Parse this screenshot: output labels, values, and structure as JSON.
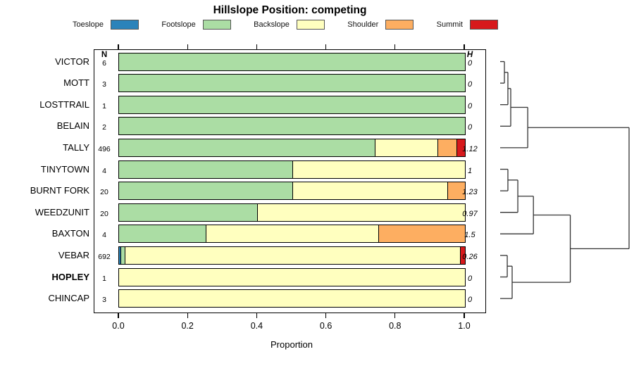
{
  "title": "Hillslope Position: competing",
  "legend": {
    "items": [
      {
        "label": "Toeslope",
        "color": "#2B83BA"
      },
      {
        "label": "Footslope",
        "color": "#ABDDA4"
      },
      {
        "label": "Backslope",
        "color": "#FFFFBF"
      },
      {
        "label": "Shoulder",
        "color": "#FDAE61"
      },
      {
        "label": "Summit",
        "color": "#D7191C"
      }
    ]
  },
  "chart_data": {
    "type": "bar",
    "orientation": "horizontal-stacked",
    "title": "Hillslope Position: competing",
    "xlabel": "Proportion",
    "xlim": [
      0,
      1.04
    ],
    "x_ticks": [
      0.0,
      0.2,
      0.4,
      0.6,
      0.8,
      1.0
    ],
    "x_tick_labels": [
      "0.0",
      "0.2",
      "0.4",
      "0.6",
      "0.8",
      "1.0"
    ],
    "grid": false,
    "legend_position": "top",
    "n_header": "N",
    "h_header": "H",
    "categories": [
      "Toeslope",
      "Footslope",
      "Backslope",
      "Shoulder",
      "Summit"
    ],
    "category_colors": [
      "#2B83BA",
      "#ABDDA4",
      "#FFFFBF",
      "#FDAE61",
      "#D7191C"
    ],
    "rows": [
      {
        "label": "VICTOR",
        "n": "6",
        "h": "0",
        "bold": false,
        "proportions": [
          0,
          1,
          0,
          0,
          0
        ]
      },
      {
        "label": "MOTT",
        "n": "3",
        "h": "0",
        "bold": false,
        "proportions": [
          0,
          1,
          0,
          0,
          0
        ]
      },
      {
        "label": "LOSTTRAIL",
        "n": "1",
        "h": "0",
        "bold": false,
        "proportions": [
          0,
          1,
          0,
          0,
          0
        ]
      },
      {
        "label": "BELAIN",
        "n": "2",
        "h": "0",
        "bold": false,
        "proportions": [
          0,
          1,
          0,
          0,
          0
        ]
      },
      {
        "label": "TALLY",
        "n": "496",
        "h": "1.12",
        "bold": false,
        "proportions": [
          0,
          0.74,
          0.18,
          0.055,
          0.025
        ]
      },
      {
        "label": "TINYTOWN",
        "n": "4",
        "h": "1",
        "bold": false,
        "proportions": [
          0,
          0.5,
          0.5,
          0,
          0
        ]
      },
      {
        "label": "BURNT FORK",
        "n": "20",
        "h": "1.23",
        "bold": false,
        "proportions": [
          0,
          0.5,
          0.45,
          0.05,
          0
        ]
      },
      {
        "label": "WEEDZUNIT",
        "n": "20",
        "h": "0.97",
        "bold": false,
        "proportions": [
          0,
          0.4,
          0.6,
          0,
          0
        ]
      },
      {
        "label": "BAXTON",
        "n": "4",
        "h": "1.5",
        "bold": false,
        "proportions": [
          0,
          0.25,
          0.5,
          0.25,
          0
        ]
      },
      {
        "label": "VEBAR",
        "n": "692",
        "h": "0.26",
        "bold": false,
        "proportions": [
          0.004,
          0.013,
          0.968,
          0,
          0.015
        ]
      },
      {
        "label": "HOPLEY",
        "n": "1",
        "h": "0",
        "bold": true,
        "proportions": [
          0,
          0,
          1,
          0,
          0
        ]
      },
      {
        "label": "CHINCAP",
        "n": "3",
        "h": "0",
        "bold": false,
        "proportions": [
          0,
          0,
          1,
          0,
          0
        ]
      }
    ],
    "dendrogram": {
      "note": "merges reference leaf ids 0-11 (row order) or internal node ids 12+i; h is relative merge height 0-1",
      "merges": [
        {
          "a": 0,
          "b": 1,
          "h": 0.033
        },
        {
          "a": 12,
          "b": 2,
          "h": 0.06
        },
        {
          "a": 13,
          "b": 3,
          "h": 0.082
        },
        {
          "a": 14,
          "b": 4,
          "h": 0.214
        },
        {
          "a": 5,
          "b": 6,
          "h": 0.06
        },
        {
          "a": 16,
          "b": 7,
          "h": 0.137
        },
        {
          "a": 17,
          "b": 8,
          "h": 0.258
        },
        {
          "a": 9,
          "b": 10,
          "h": 0.055
        },
        {
          "a": 19,
          "b": 11,
          "h": 0.093
        },
        {
          "a": 18,
          "b": 20,
          "h": 0.544
        },
        {
          "a": 15,
          "b": 21,
          "h": 1.0
        }
      ]
    }
  }
}
